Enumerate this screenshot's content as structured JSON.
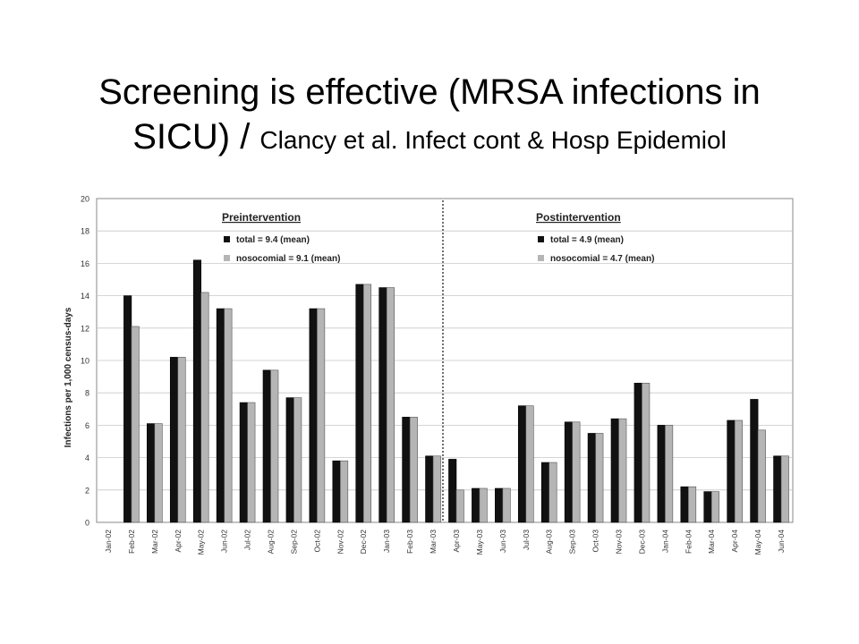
{
  "slide": {
    "title_line1": "Screening is effective (MRSA infections in",
    "title_line2_main": "SICU) / ",
    "title_line2_cite": "Clancy et al. Infect cont & Hosp Epidemiol"
  },
  "chart_data": {
    "type": "bar",
    "title": "",
    "xlabel": "",
    "ylabel": "Infections per 1,000 census-days",
    "ylim": [
      0,
      20
    ],
    "yticks": [
      0,
      2,
      4,
      6,
      8,
      10,
      12,
      14,
      16,
      18,
      20
    ],
    "grid": true,
    "categories": [
      "Jan-02",
      "Feb-02",
      "Mar-02",
      "Apr-02",
      "May-02",
      "Jun-02",
      "Jul-02",
      "Aug-02",
      "Sep-02",
      "Oct-02",
      "Nov-02",
      "Dec-02",
      "Jan-03",
      "Feb-03",
      "Mar-03",
      "Apr-03",
      "May-03",
      "Jun-03",
      "Jul-03",
      "Aug-03",
      "Sep-03",
      "Oct-03",
      "Nov-03",
      "Dec-03",
      "Jan-04",
      "Feb-04",
      "Mar-04",
      "Apr-04",
      "May-04",
      "Jun-04"
    ],
    "series": [
      {
        "name": "total",
        "color": "#111111",
        "values": [
          0,
          14.0,
          6.1,
          10.2,
          16.2,
          13.2,
          7.4,
          9.4,
          7.7,
          13.2,
          3.8,
          14.7,
          14.5,
          6.5,
          4.1,
          3.9,
          2.1,
          2.1,
          7.2,
          3.7,
          6.2,
          5.5,
          6.4,
          8.6,
          6.0,
          2.2,
          1.9,
          6.3,
          7.6,
          4.1
        ]
      },
      {
        "name": "nosocomial",
        "color": "#b5b5b5",
        "values": [
          0,
          12.1,
          6.1,
          10.2,
          14.2,
          13.2,
          7.4,
          9.4,
          7.7,
          13.2,
          3.8,
          14.7,
          14.5,
          6.5,
          4.1,
          2.0,
          2.1,
          2.1,
          7.2,
          3.7,
          6.2,
          5.5,
          6.4,
          8.6,
          6.0,
          2.2,
          1.9,
          6.3,
          5.7,
          4.1
        ]
      }
    ],
    "divider_after_category": "Mar-03",
    "annotations": {
      "pre": {
        "heading": "Preintervention",
        "total": "total = 9.4 (mean)",
        "noso": "nosocomial = 9.1 (mean)"
      },
      "post": {
        "heading": "Postintervention",
        "total": "total = 4.9 (mean)",
        "noso": "nosocomial = 4.7 (mean)"
      }
    }
  }
}
